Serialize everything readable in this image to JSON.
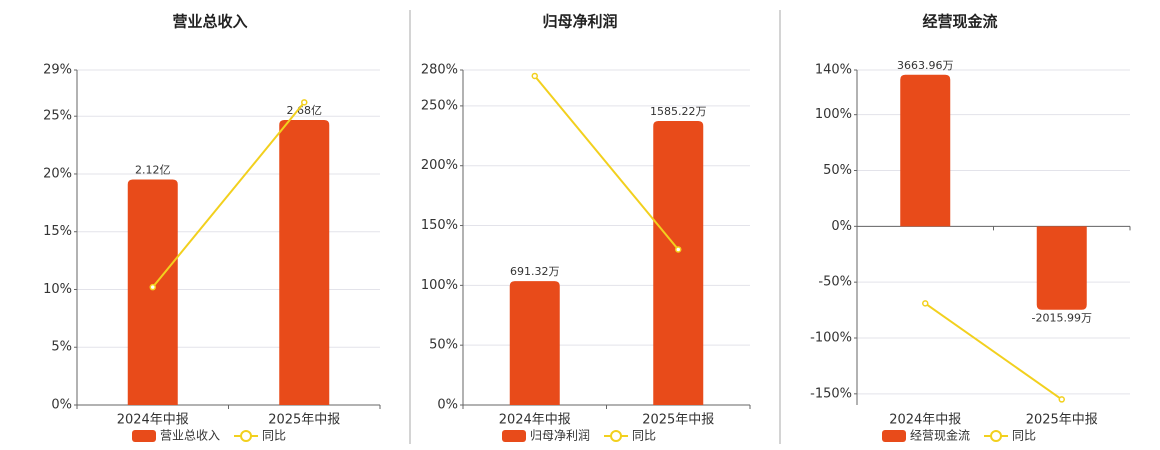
{
  "chart_data": [
    {
      "type": "bar",
      "title": "营业总收入",
      "categories": [
        "2024年中报",
        "2025年中报"
      ],
      "series": [
        {
          "name": "营业总收入",
          "type": "bar",
          "axis": "y2",
          "color": "#e84b1a",
          "values": [
            2.12,
            2.68
          ],
          "value_labels": [
            "2.12亿",
            "2.68亿"
          ]
        },
        {
          "name": "同比",
          "type": "line",
          "color": "#f2d01e",
          "values": [
            10.2,
            26.2
          ]
        }
      ],
      "ylim": [
        0,
        29
      ],
      "yticks": [
        {
          "value": 0,
          "label": "0%"
        },
        {
          "value": 5,
          "label": "5%"
        },
        {
          "value": 10,
          "label": "10%"
        },
        {
          "value": 15,
          "label": "15%"
        },
        {
          "value": 20,
          "label": "20%"
        },
        {
          "value": 25,
          "label": "25%"
        },
        {
          "value": 29,
          "label": "29%"
        }
      ],
      "y2lim": [
        0,
        3.15
      ],
      "grid": true
    },
    {
      "type": "bar",
      "title": "归母净利润",
      "categories": [
        "2024年中报",
        "2025年中报"
      ],
      "series": [
        {
          "name": "归母净利润",
          "type": "bar",
          "axis": "y2",
          "color": "#e84b1a",
          "values": [
            691.32,
            1585.22
          ],
          "value_labels": [
            "691.32万",
            "1585.22万"
          ]
        },
        {
          "name": "同比",
          "type": "line",
          "color": "#f2d01e",
          "values": [
            275,
            130
          ]
        }
      ],
      "ylim": [
        0,
        280
      ],
      "yticks": [
        {
          "value": 0,
          "label": "0%"
        },
        {
          "value": 50,
          "label": "50%"
        },
        {
          "value": 100,
          "label": "100%"
        },
        {
          "value": 150,
          "label": "150%"
        },
        {
          "value": 200,
          "label": "200%"
        },
        {
          "value": 250,
          "label": "250%"
        },
        {
          "value": 280,
          "label": "280%"
        }
      ],
      "y2lim": [
        0,
        1870
      ],
      "grid": true
    },
    {
      "type": "bar",
      "title": "经营现金流",
      "categories": [
        "2024年中报",
        "2025年中报"
      ],
      "series": [
        {
          "name": "经营现金流",
          "type": "bar",
          "axis": "y2",
          "color": "#e84b1a",
          "values": [
            3663.96,
            -2015.99
          ],
          "value_labels": [
            "3663.96万",
            "-2015.99万"
          ]
        },
        {
          "name": "同比",
          "type": "line",
          "color": "#f2d01e",
          "values": [
            -69,
            -155
          ]
        }
      ],
      "ylim": [
        -160,
        140
      ],
      "yticks": [
        {
          "value": -150,
          "label": "-150%"
        },
        {
          "value": -100,
          "label": "-100%"
        },
        {
          "value": -50,
          "label": "-50%"
        },
        {
          "value": 0,
          "label": "0%"
        },
        {
          "value": 50,
          "label": "50%"
        },
        {
          "value": 100,
          "label": "100%"
        },
        {
          "value": 140,
          "label": "140%"
        }
      ],
      "y2lim": [
        -4320,
        3780
      ],
      "grid": true
    }
  ]
}
